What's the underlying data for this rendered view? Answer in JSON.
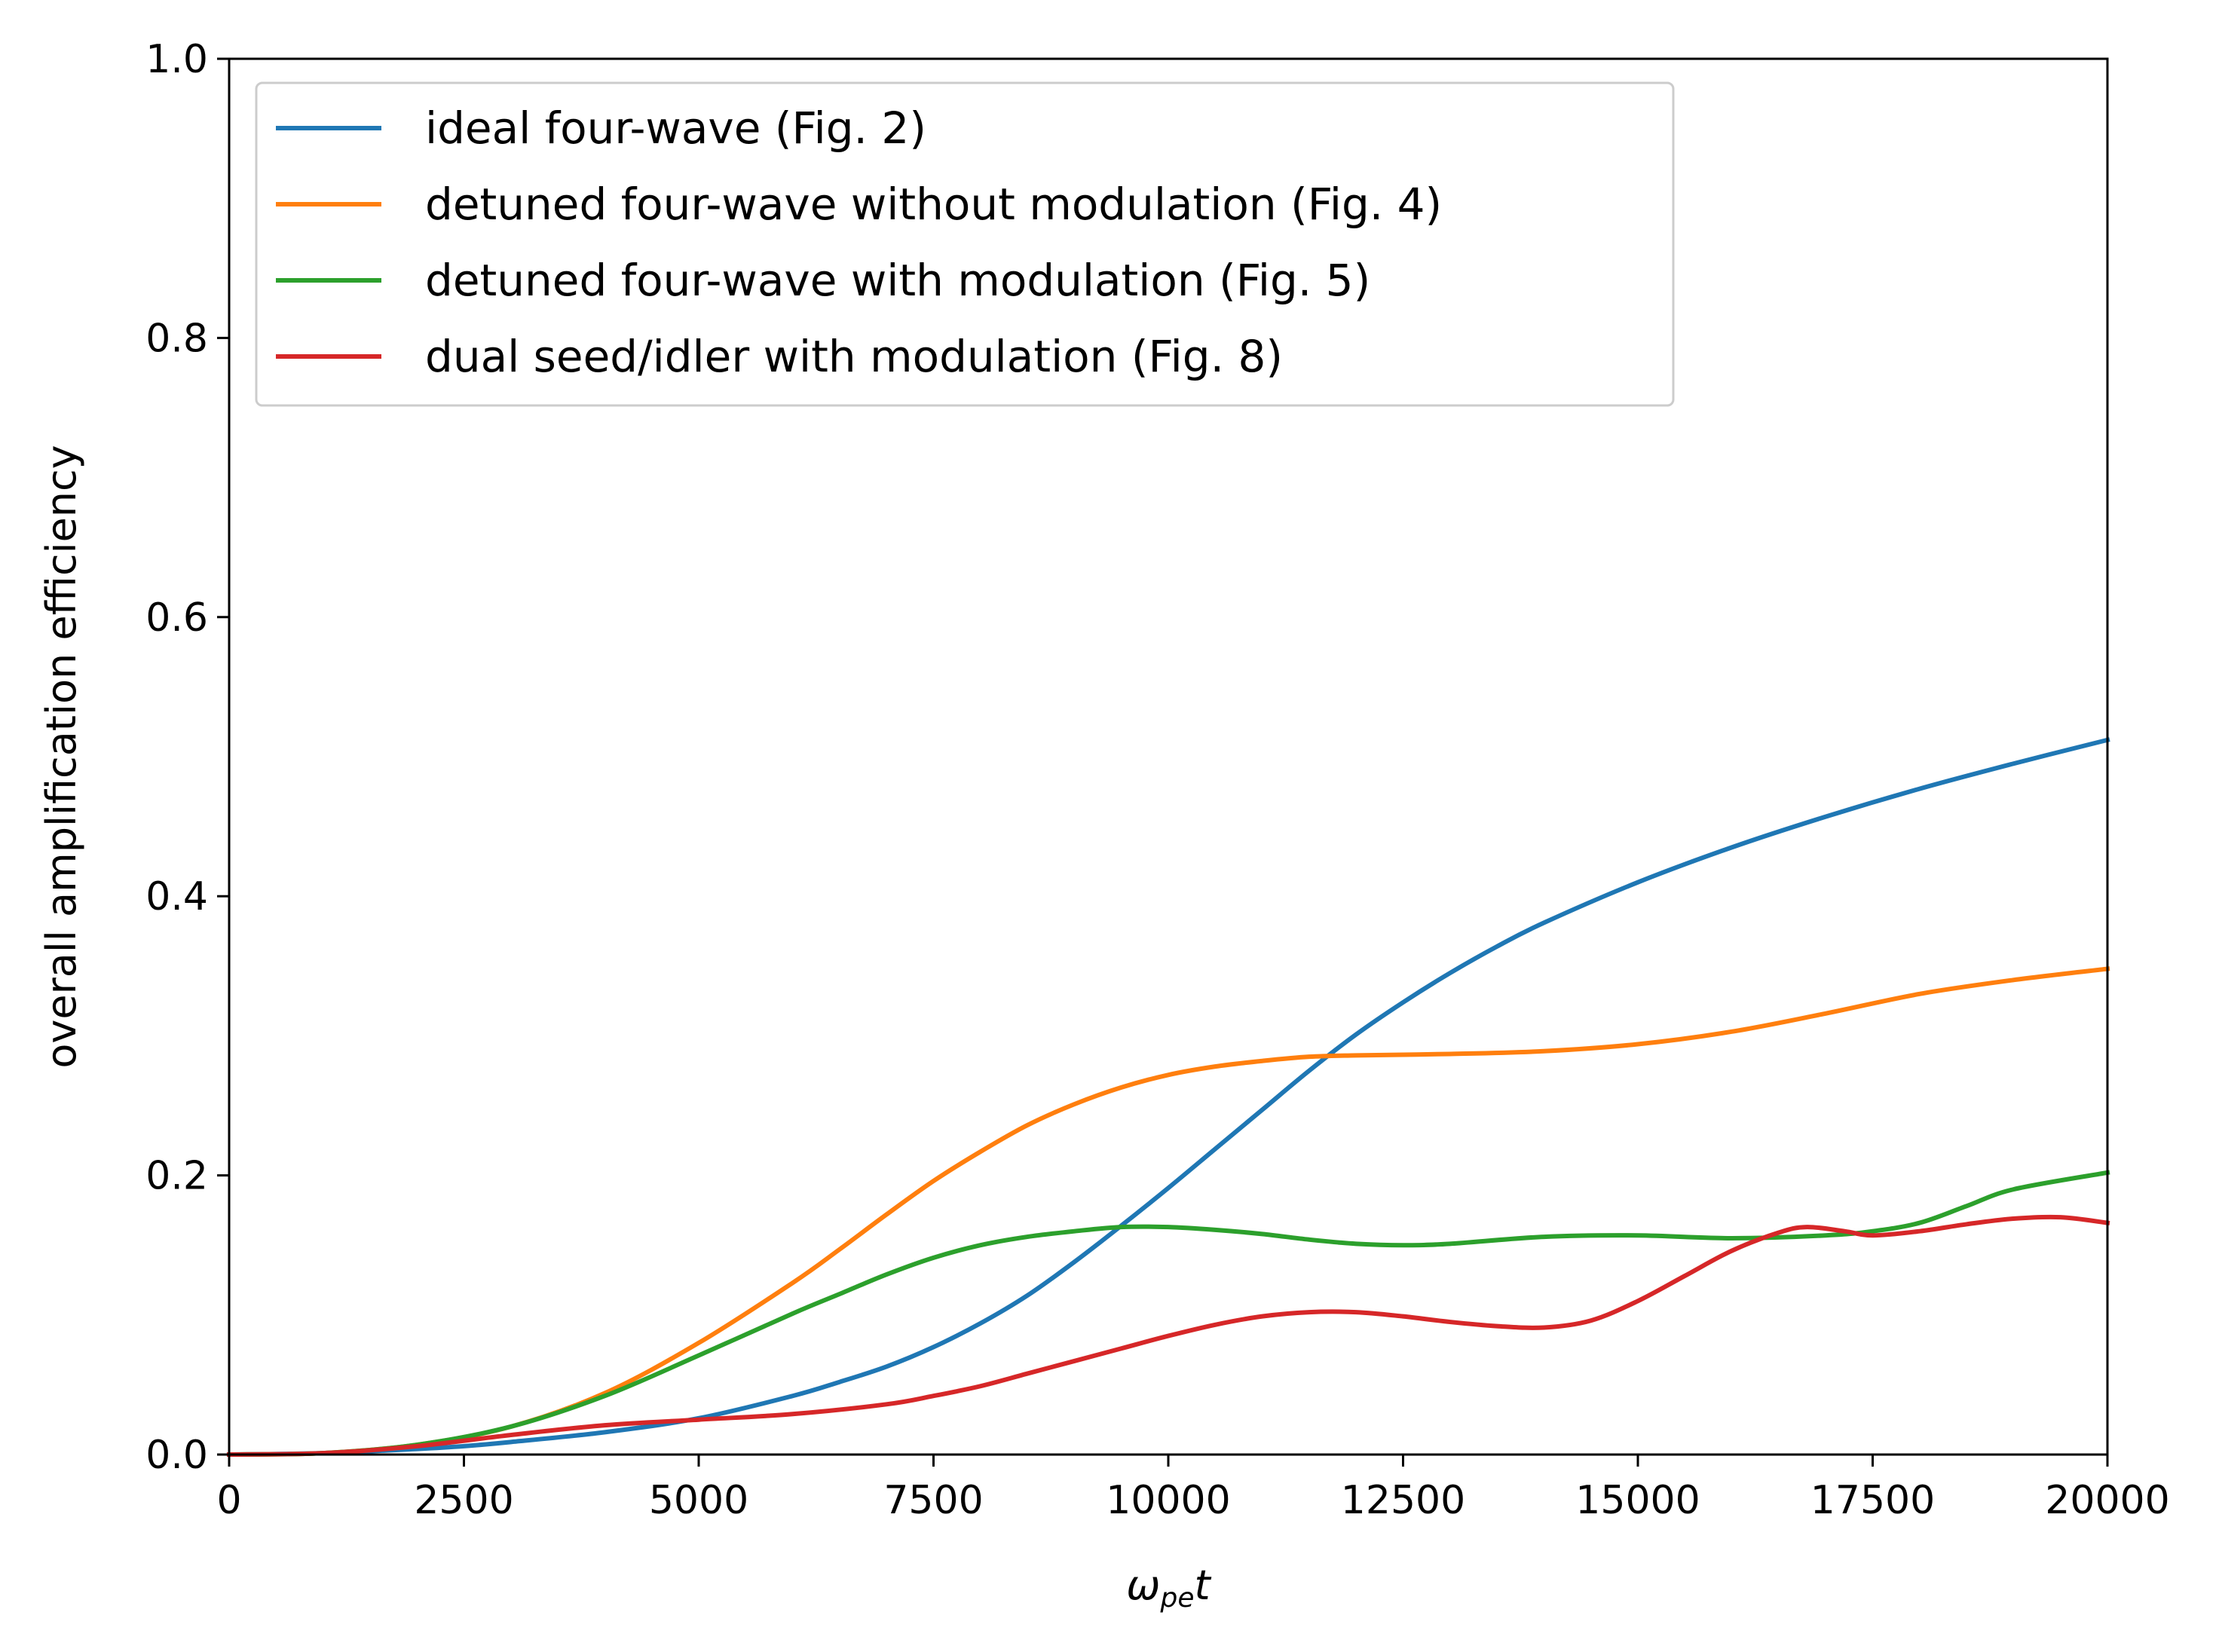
{
  "chart_data": {
    "type": "line",
    "title": "",
    "xlabel": {
      "symbol": "ω",
      "subscript": "pe",
      "suffix": "t"
    },
    "ylabel": "overall amplification efficiency",
    "xlim": [
      0,
      20000
    ],
    "ylim": [
      0,
      1.0
    ],
    "xticks": [
      0,
      2500,
      5000,
      7500,
      10000,
      12500,
      15000,
      17500,
      20000
    ],
    "xtick_labels": [
      "0",
      "2500",
      "5000",
      "7500",
      "10000",
      "12500",
      "15000",
      "17500",
      "20000"
    ],
    "yticks": [
      0,
      0.2,
      0.4,
      0.6,
      0.8,
      1.0
    ],
    "ytick_labels": [
      "0.0",
      "0.2",
      "0.4",
      "0.6",
      "0.8",
      "1.0"
    ],
    "grid": false,
    "legend_position": "top-left",
    "series": [
      {
        "name": "ideal four-wave (Fig. 2)",
        "color": "#1f77b4",
        "x": [
          0,
          1000,
          2000,
          2500,
          3000,
          4000,
          5000,
          6000,
          6500,
          7000,
          7500,
          8000,
          8500,
          9000,
          9500,
          10000,
          10500,
          11000,
          11500,
          12000,
          12500,
          13000,
          13500,
          14000,
          15000,
          16000,
          17000,
          18000,
          19000,
          20000
        ],
        "values": [
          0,
          0.001,
          0.004,
          0.006,
          0.009,
          0.016,
          0.026,
          0.042,
          0.052,
          0.063,
          0.077,
          0.094,
          0.114,
          0.138,
          0.164,
          0.191,
          0.219,
          0.247,
          0.275,
          0.301,
          0.324,
          0.345,
          0.364,
          0.381,
          0.41,
          0.435,
          0.457,
          0.477,
          0.495,
          0.512
        ]
      },
      {
        "name": "detuned four-wave without modulation (Fig. 4)",
        "color": "#ff7f0e",
        "x": [
          0,
          1000,
          2000,
          3000,
          4000,
          5000,
          6000,
          6500,
          7000,
          7500,
          8000,
          8500,
          9000,
          9500,
          10000,
          10500,
          11000,
          11500,
          12000,
          13000,
          14000,
          15000,
          16000,
          17000,
          18000,
          19000,
          20000
        ],
        "values": [
          0,
          0.001,
          0.007,
          0.02,
          0.044,
          0.08,
          0.123,
          0.147,
          0.172,
          0.196,
          0.217,
          0.236,
          0.251,
          0.263,
          0.272,
          0.278,
          0.282,
          0.285,
          0.286,
          0.287,
          0.289,
          0.294,
          0.303,
          0.316,
          0.33,
          0.34,
          0.348
        ]
      },
      {
        "name": "detuned four-wave with modulation (Fig. 5)",
        "color": "#2ca02c",
        "x": [
          0,
          1000,
          2000,
          3000,
          4000,
          5000,
          6000,
          6500,
          7000,
          7500,
          8000,
          8500,
          9000,
          9500,
          10000,
          10500,
          11000,
          11500,
          12000,
          12500,
          13000,
          14000,
          15000,
          16000,
          17000,
          17500,
          18000,
          18500,
          19000,
          20000
        ],
        "values": [
          0,
          0.001,
          0.007,
          0.02,
          0.042,
          0.071,
          0.101,
          0.115,
          0.129,
          0.141,
          0.15,
          0.156,
          0.16,
          0.163,
          0.163,
          0.161,
          0.158,
          0.154,
          0.151,
          0.15,
          0.151,
          0.156,
          0.157,
          0.155,
          0.157,
          0.16,
          0.166,
          0.178,
          0.19,
          0.202
        ]
      },
      {
        "name": "dual seed/idler with modulation (Fig. 8)",
        "color": "#d62728",
        "x": [
          0,
          1000,
          2000,
          3000,
          4000,
          5000,
          6000,
          7000,
          7500,
          8000,
          8500,
          9000,
          9500,
          10000,
          10500,
          11000,
          11500,
          12000,
          12500,
          13000,
          13500,
          14000,
          14500,
          15000,
          15500,
          16000,
          16500,
          16800,
          17200,
          17500,
          18000,
          18500,
          19000,
          19500,
          20000
        ],
        "values": [
          0,
          0.001,
          0.006,
          0.014,
          0.021,
          0.025,
          0.029,
          0.036,
          0.042,
          0.049,
          0.058,
          0.067,
          0.076,
          0.085,
          0.093,
          0.099,
          0.102,
          0.102,
          0.099,
          0.095,
          0.092,
          0.091,
          0.096,
          0.11,
          0.128,
          0.146,
          0.159,
          0.163,
          0.16,
          0.157,
          0.16,
          0.165,
          0.169,
          0.17,
          0.166
        ]
      }
    ]
  }
}
